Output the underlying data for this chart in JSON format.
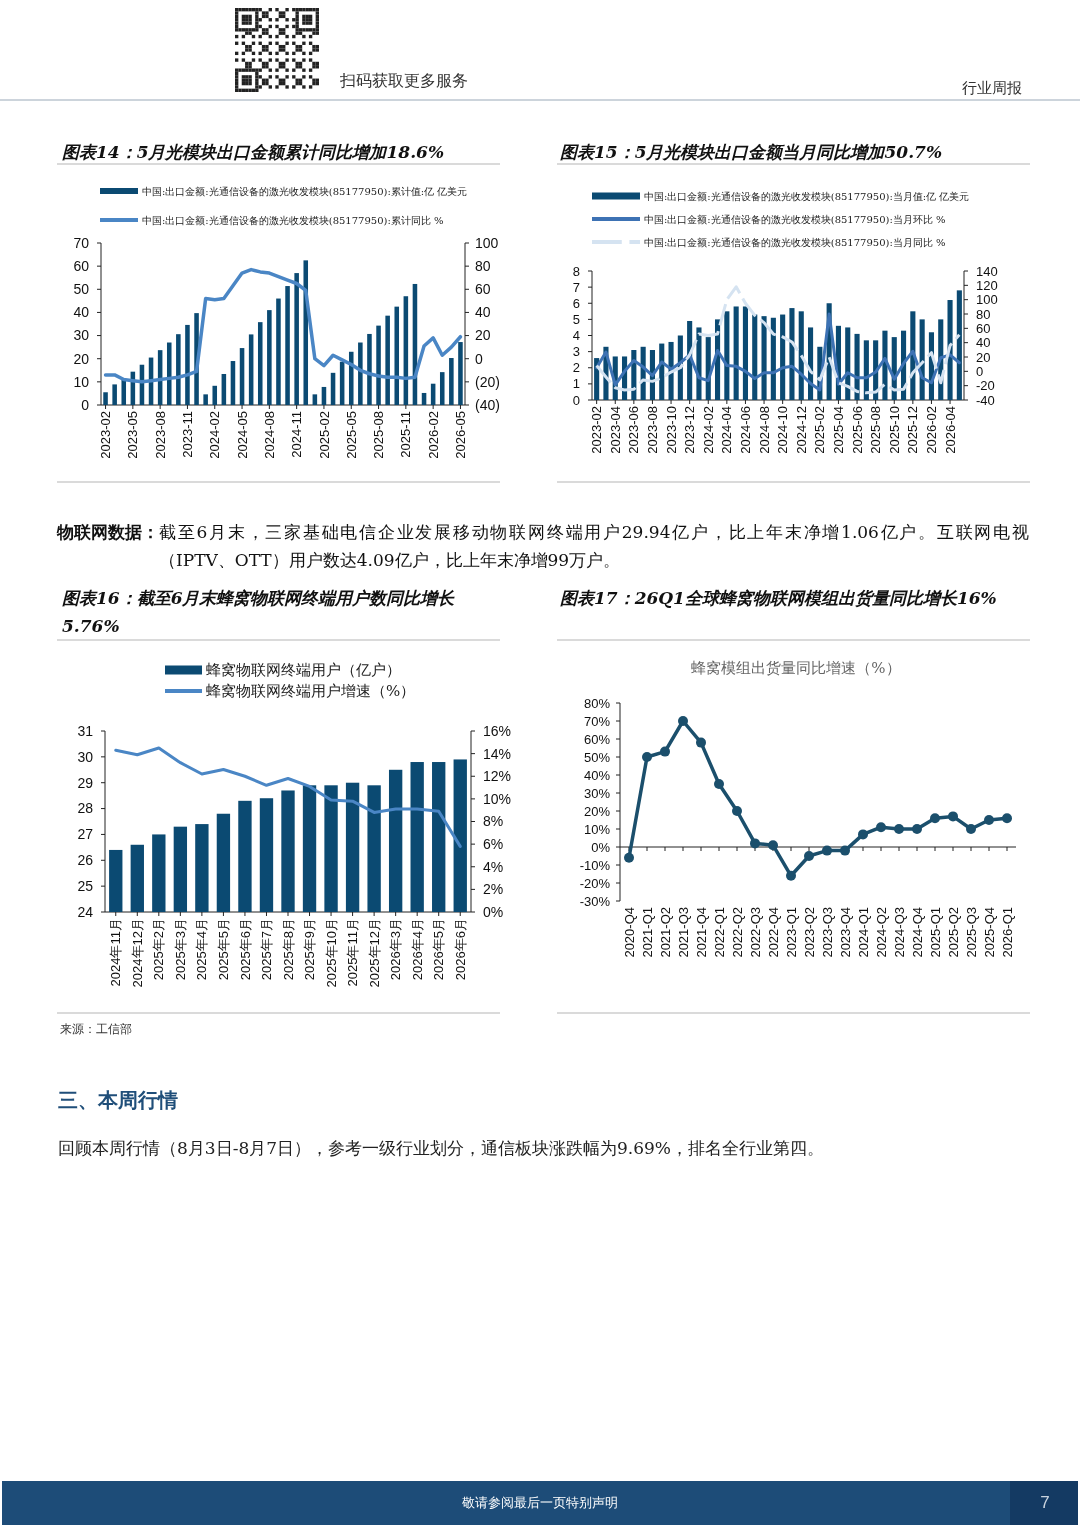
{
  "chart_data": [
    {
      "type": "other",
      "annotations": [
        "扫码获取更多服务",
        "行业周报"
      ]
    },
    {
      "type": "bar",
      "title": "图表14：5月光模块出口金额累计同比增加18.6%",
      "categories": [
        "2023-02",
        null,
        null,
        "2023-05",
        null,
        null,
        "2023-08",
        null,
        null,
        "2023-11",
        null,
        null,
        "2024-02",
        null,
        null,
        "2024-05",
        null,
        null,
        "2024-08",
        null,
        null,
        "2024-11",
        null,
        null,
        "2025-02",
        null,
        null,
        "2025-05",
        null,
        null,
        "2025-08",
        null,
        null,
        "2025-11",
        null,
        null,
        "2026-02",
        null,
        null,
        "2026-05"
      ],
      "series": [
        {
          "name": "中国:出口金额:光通信设备的激光收发模块(85177950):累计值:亿 亿美元",
          "color": "#0b4a72",
          "values": [
            5.5,
            8.9,
            11,
            14.4,
            17.4,
            20.5,
            23.7,
            27,
            30.6,
            34.6,
            39.7,
            4.6,
            8.3,
            13.4,
            19,
            24.6,
            30.5,
            35.8,
            41,
            46,
            51.4,
            57,
            62.5,
            4.6,
            7.8,
            13.9,
            18.7,
            23,
            27,
            30.7,
            34.3,
            38.6,
            42.5,
            47,
            52.3,
            5.2,
            9.2,
            14.2,
            20.3,
            27.2
          ]
        },
        {
          "name": "中国:出口金额:光通信设备的激光收发模块(85177950):累计同比 %",
          "type": "line",
          "axis": "y2",
          "color": "#4a86c5",
          "values": [
            -14,
            -14,
            -18,
            -19,
            -20,
            -19,
            -18,
            -17,
            -16,
            -14,
            -11,
            52,
            51,
            52,
            63,
            74,
            77,
            75,
            74,
            71,
            68,
            65,
            59,
            0,
            -6,
            3,
            -1,
            -5,
            -10,
            -13,
            -15,
            -16,
            -16,
            -17,
            -16,
            11,
            18,
            3,
            10,
            19
          ]
        }
      ],
      "ylim": [
        0,
        70
      ],
      "yticks": [
        0,
        10,
        20,
        30,
        40,
        50,
        60,
        70
      ],
      "y2lim": [
        -40,
        100
      ],
      "y2ticks": [
        {
          "value": -40,
          "label": "(40)"
        },
        {
          "value": -20,
          "label": "(20)"
        },
        0,
        20,
        40,
        60,
        80,
        100
      ],
      "legend": "top"
    },
    {
      "type": "bar",
      "title": "图表15：5月光模块出口金额当月同比增加50.7%",
      "categories": [
        "2023-02",
        null,
        "2023-04",
        null,
        "2023-06",
        null,
        "2023-08",
        null,
        "2023-10",
        null,
        "2023-12",
        null,
        "2024-02",
        null,
        "2024-04",
        null,
        "2024-06",
        null,
        "2024-08",
        null,
        "2024-10",
        null,
        "2024-12",
        null,
        "2025-02",
        null,
        "2025-04",
        null,
        "2025-06",
        null,
        "2025-08",
        null,
        "2025-10",
        null,
        "2025-12",
        null,
        "2026-02",
        null,
        "2026-04",
        null
      ],
      "series": [
        {
          "name": "中国:出口金额:光通信设备的激光收发模块(85177950):当月值:亿 亿美元",
          "color": "#0b4a72",
          "values": [
            2.6,
            3.3,
            2.7,
            2.7,
            3.1,
            3.3,
            3.1,
            3.5,
            3.6,
            4.0,
            4.9,
            4.5,
            3.9,
            5.0,
            5.5,
            5.8,
            5.8,
            5.3,
            5.2,
            5.1,
            5.3,
            5.7,
            5.5,
            4.5,
            3.3,
            6.0,
            4.6,
            4.5,
            4.1,
            3.7,
            3.7,
            4.3,
            3.9,
            4.3,
            5.5,
            5.0,
            4.2,
            5.0,
            6.2,
            6.8
          ]
        },
        {
          "name": "中国:出口金额:光通信设备的激光收发模块(85177950):当月环比 %",
          "type": "line",
          "axis": "y2",
          "color": "#3d72b4",
          "values": [
            5,
            27,
            -19,
            0,
            15,
            6,
            -6,
            13,
            3,
            12,
            23,
            -9,
            -13,
            29,
            8,
            7,
            0,
            -10,
            -2,
            -2,
            5,
            7,
            -4,
            -17,
            -26,
            80,
            -18,
            -2,
            -9,
            -9,
            -1,
            18,
            -11,
            11,
            28,
            -9,
            -16,
            19,
            23,
            12
          ]
        },
        {
          "name": "中国:出口金额:光通信设备的激光收发模块(85177950):当月同比 %",
          "type": "line",
          "axis": "y2",
          "color": "#d5e3f1",
          "line_style": "dashed",
          "values": [
            8,
            -8,
            -23,
            -26,
            -25,
            -12,
            -14,
            -9,
            -1,
            5,
            23,
            52,
            50,
            52,
            100,
            118,
            95,
            78,
            68,
            52,
            48,
            41,
            22,
            0,
            -12,
            20,
            -16,
            -21,
            -28,
            -30,
            -29,
            -18,
            -26,
            -25,
            -2,
            12,
            26,
            -16,
            36,
            51
          ]
        }
      ],
      "ylim": [
        0,
        8
      ],
      "yticks": [
        0,
        1,
        2,
        3,
        4,
        5,
        6,
        7,
        8
      ],
      "y2lim": [
        -40,
        140
      ],
      "y2ticks": [
        -40,
        -20,
        0,
        20,
        40,
        60,
        80,
        100,
        120,
        140
      ],
      "legend": "top"
    },
    {
      "type": "other",
      "annotations": [
        "物联网数据：",
        "截至6月末，三家基础电信企业发展移动物联网终端用户29.94亿户，比上年末净增1.06亿户。互联网电视（IPTV、OTT）用户数达4.09亿户，比上年末净增99万户。"
      ]
    },
    {
      "type": "bar",
      "title": "图表16：截至6月末蜂窝物联网终端用户数同比增长5.76%",
      "categories": [
        "2024年11月",
        "2024年12月",
        "2025年2月",
        "2025年3月",
        "2025年4月",
        "2025年5月",
        "2025年6月",
        "2025年7月",
        "2025年8月",
        "2025年9月",
        "2025年10月",
        "2025年11月",
        "2025年12月",
        "2026年3月",
        "2026年4月",
        "2026年5月",
        "2026年6月"
      ],
      "series": [
        {
          "name": "蜂窝物联网终端用户（亿户）",
          "color": "#0b4a72",
          "values": [
            26.4,
            26.6,
            27.0,
            27.3,
            27.4,
            27.8,
            28.3,
            28.4,
            28.7,
            28.9,
            28.9,
            29.0,
            28.9,
            29.5,
            29.8,
            29.8,
            29.9
          ]
        },
        {
          "name": "蜂窝物联网终端用户增速（%）",
          "type": "line",
          "axis": "y2",
          "color": "#4a86c5",
          "values": [
            14.3,
            13.9,
            14.5,
            13.2,
            12.2,
            12.6,
            12.0,
            11.2,
            11.8,
            11.1,
            9.9,
            9.8,
            8.8,
            9.1,
            9.1,
            8.9,
            5.8
          ]
        }
      ],
      "ylim": [
        24,
        31
      ],
      "yticks": [
        24,
        25,
        26,
        27,
        28,
        29,
        30,
        31
      ],
      "y2lim": [
        0,
        16
      ],
      "y2ticks": [
        {
          "value": 0,
          "label": "0%"
        },
        {
          "value": 2,
          "label": "2%"
        },
        {
          "value": 4,
          "label": "4%"
        },
        {
          "value": 6,
          "label": "6%"
        },
        {
          "value": 8,
          "label": "8%"
        },
        {
          "value": 10,
          "label": "10%"
        },
        {
          "value": 12,
          "label": "12%"
        },
        {
          "value": 14,
          "label": "14%"
        },
        {
          "value": 16,
          "label": "16%"
        }
      ],
      "legend": "top",
      "annotations": [
        "来源：工信部"
      ]
    },
    {
      "type": "line",
      "title": "图表17：26Q1全球蜂窝物联网模组出货量同比增长16%",
      "subtitle": "蜂窝模组出货量同比增速（%）",
      "categories": [
        "2020-Q4",
        "2021-Q1",
        "2021-Q2",
        "2021-Q3",
        "2021-Q4",
        "2022-Q1",
        "2022-Q2",
        "2022-Q3",
        "2022-Q4",
        "2023-Q1",
        "2023-Q2",
        "2023-Q3",
        "2023-Q4",
        "2024-Q1",
        "2024-Q2",
        "2024-Q3",
        "2024-Q4",
        "2025-Q1",
        "2025-Q2",
        "2025-Q3",
        "2025-Q4",
        "2026-Q1"
      ],
      "values": [
        -6,
        50,
        53,
        70,
        58,
        35,
        20,
        2,
        1,
        -16,
        -5,
        -2,
        -2,
        7,
        11,
        10,
        10,
        16,
        17,
        10,
        15,
        16
      ],
      "color": "#1b4f6c",
      "marker": "circle",
      "ylim": [
        -30,
        80
      ],
      "yticks": [
        {
          "value": -30,
          "label": "-30%"
        },
        {
          "value": -20,
          "label": "-20%"
        },
        {
          "value": -10,
          "label": "-10%"
        },
        {
          "value": 0,
          "label": "0%"
        },
        {
          "value": 10,
          "label": "10%"
        },
        {
          "value": 20,
          "label": "20%"
        },
        {
          "value": 30,
          "label": "30%"
        },
        {
          "value": 40,
          "label": "40%"
        },
        {
          "value": 50,
          "label": "50%"
        },
        {
          "value": 60,
          "label": "60%"
        },
        {
          "value": 70,
          "label": "70%"
        },
        {
          "value": 80,
          "label": "80%"
        }
      ]
    },
    {
      "type": "other",
      "annotations": [
        "三、本周行情",
        "回顾本周行情（8月3日-8月7日），参考一级行业划分，通信板块涨跌幅为9.69%，排名全行业第四。",
        "敬请参阅最后一页特别声明",
        "7"
      ]
    }
  ]
}
